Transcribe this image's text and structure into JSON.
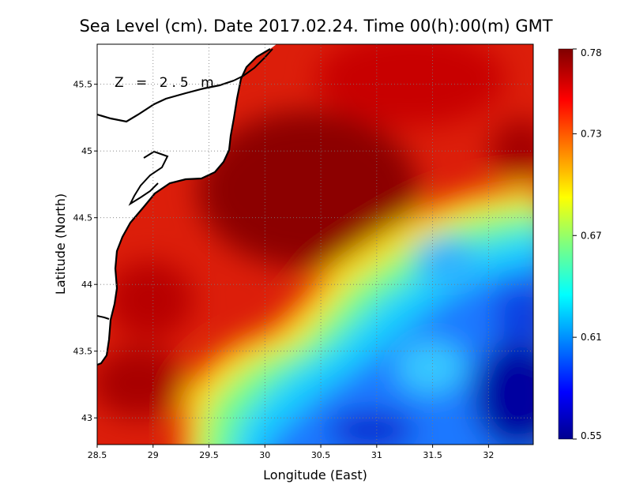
{
  "chart_data": {
    "type": "heatmap",
    "title": "Sea Level (cm). Date 2017.02.24. Time 00(h):00(m) GMT",
    "xlabel": "Longitude (East)",
    "ylabel": "Latitude (North)",
    "annotation": "Z = 2.5 m",
    "xlim": [
      28.5,
      32.4
    ],
    "ylim": [
      42.8,
      45.8
    ],
    "x_ticks": [
      "28.5",
      "29",
      "29.5",
      "30",
      "30.5",
      "31",
      "31.5",
      "32"
    ],
    "y_ticks": [
      "43",
      "43.5",
      "44",
      "44.5",
      "45",
      "45.5"
    ],
    "grid": true,
    "colorbar": {
      "min": 0.55,
      "max": 0.78,
      "ticks": [
        "0.78",
        "0.73",
        "0.67",
        "0.61",
        "0.55"
      ],
      "colormap": "jet",
      "placement": "right"
    },
    "field_samples": [
      {
        "lon": 29.0,
        "lat": 44.0,
        "value": 0.77
      },
      {
        "lon": 30.2,
        "lat": 44.8,
        "value": 0.78
      },
      {
        "lon": 31.0,
        "lat": 45.5,
        "value": 0.77
      },
      {
        "lon": 29.2,
        "lat": 42.9,
        "value": 0.7
      },
      {
        "lon": 30.3,
        "lat": 43.6,
        "value": 0.67
      },
      {
        "lon": 31.5,
        "lat": 43.4,
        "value": 0.63
      },
      {
        "lon": 31.0,
        "lat": 43.0,
        "value": 0.58
      },
      {
        "lon": 32.2,
        "lat": 43.1,
        "value": 0.55
      },
      {
        "lon": 32.3,
        "lat": 44.3,
        "value": 0.61
      },
      {
        "lon": 32.2,
        "lat": 44.7,
        "value": 0.7
      }
    ]
  }
}
